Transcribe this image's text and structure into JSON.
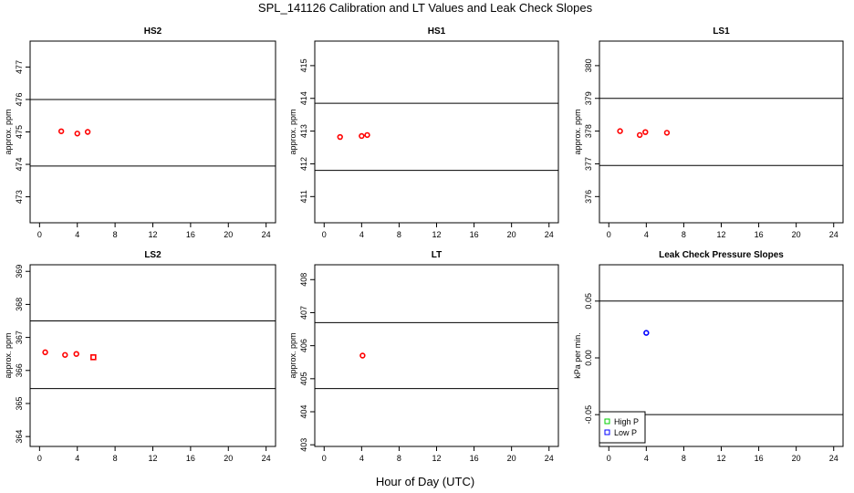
{
  "figure": {
    "title": "SPL_141126  Calibration and LT Values and Leak Check Slopes",
    "xlabel": "Hour of Day (UTC)"
  },
  "chart_data": [
    {
      "type": "scatter",
      "title": "HS2",
      "ylabel": "approx. ppm",
      "xlim": [
        -1,
        25
      ],
      "ylim": [
        472.2,
        477.8
      ],
      "xticks": [
        "0",
        "4",
        "8",
        "12",
        "16",
        "20",
        "24"
      ],
      "yticks": [
        "473",
        "474",
        "475",
        "476",
        "477"
      ],
      "hlines": [
        476.0,
        473.95
      ],
      "series": [
        {
          "color": "#ff0000",
          "marker": "circle",
          "points": [
            [
              2.3,
              475.02
            ],
            [
              4.0,
              474.95
            ],
            [
              5.1,
              475.0
            ]
          ]
        }
      ]
    },
    {
      "type": "scatter",
      "title": "HS1",
      "ylabel": "approx. ppm",
      "xlim": [
        -1,
        25
      ],
      "ylim": [
        410.2,
        415.75
      ],
      "xticks": [
        "0",
        "4",
        "8",
        "12",
        "16",
        "20",
        "24"
      ],
      "yticks": [
        "411",
        "412",
        "413",
        "414",
        "415"
      ],
      "hlines": [
        413.85,
        411.8
      ],
      "series": [
        {
          "color": "#ff0000",
          "marker": "circle",
          "points": [
            [
              1.7,
              412.82
            ],
            [
              4.0,
              412.85
            ],
            [
              4.6,
              412.88
            ]
          ]
        }
      ]
    },
    {
      "type": "scatter",
      "title": "LS1",
      "ylabel": "approx. ppm",
      "xlim": [
        -1,
        25
      ],
      "ylim": [
        375.2,
        380.75
      ],
      "xticks": [
        "0",
        "4",
        "8",
        "12",
        "16",
        "20",
        "24"
      ],
      "yticks": [
        "376",
        "377",
        "378",
        "379",
        "380"
      ],
      "hlines": [
        379.0,
        376.95
      ],
      "series": [
        {
          "color": "#ff0000",
          "marker": "circle",
          "points": [
            [
              1.2,
              378.0
            ],
            [
              3.3,
              377.88
            ],
            [
              3.9,
              377.97
            ],
            [
              6.2,
              377.95
            ]
          ]
        }
      ]
    },
    {
      "type": "scatter",
      "title": "LS2",
      "ylabel": "approx. ppm",
      "xlim": [
        -1,
        25
      ],
      "ylim": [
        363.7,
        369.2
      ],
      "xticks": [
        "0",
        "4",
        "8",
        "12",
        "16",
        "20",
        "24"
      ],
      "yticks": [
        "364",
        "365",
        "366",
        "367",
        "368",
        "369"
      ],
      "hlines": [
        367.5,
        365.45
      ],
      "series": [
        {
          "color": "#ff0000",
          "marker": "circle",
          "points": [
            [
              0.6,
              366.55
            ],
            [
              2.7,
              366.47
            ],
            [
              3.9,
              366.5
            ]
          ]
        },
        {
          "color": "#ff0000",
          "marker": "square",
          "points": [
            [
              5.7,
              366.4
            ]
          ]
        }
      ]
    },
    {
      "type": "scatter",
      "title": "LT",
      "ylabel": "approx. ppm",
      "xlim": [
        -1,
        25
      ],
      "ylim": [
        402.95,
        408.45
      ],
      "xticks": [
        "0",
        "4",
        "8",
        "12",
        "16",
        "20",
        "24"
      ],
      "yticks": [
        "403",
        "404",
        "405",
        "406",
        "407",
        "408"
      ],
      "hlines": [
        406.7,
        404.7
      ],
      "series": [
        {
          "color": "#ff0000",
          "marker": "circle",
          "points": [
            [
              4.1,
              405.7
            ]
          ]
        }
      ]
    },
    {
      "type": "scatter",
      "title": "Leak Check Pressure Slopes",
      "ylabel": "kPa per min.",
      "xlim": [
        -1,
        25
      ],
      "ylim": [
        -0.078,
        0.082
      ],
      "xticks": [
        "0",
        "4",
        "8",
        "12",
        "16",
        "20",
        "24"
      ],
      "yticks": [
        "-0.05",
        "0.00",
        "0.05"
      ],
      "hlines": [
        0.05,
        -0.05
      ],
      "legend": {
        "position": "bottom-left",
        "items": [
          {
            "label": "High P",
            "color": "#00cc00",
            "marker": "square"
          },
          {
            "label": "Low P",
            "color": "#0000ff",
            "marker": "square"
          }
        ]
      },
      "series": [
        {
          "name": "Low P",
          "color": "#0000ff",
          "marker": "circle",
          "points": [
            [
              4.0,
              0.022
            ]
          ]
        }
      ]
    }
  ]
}
